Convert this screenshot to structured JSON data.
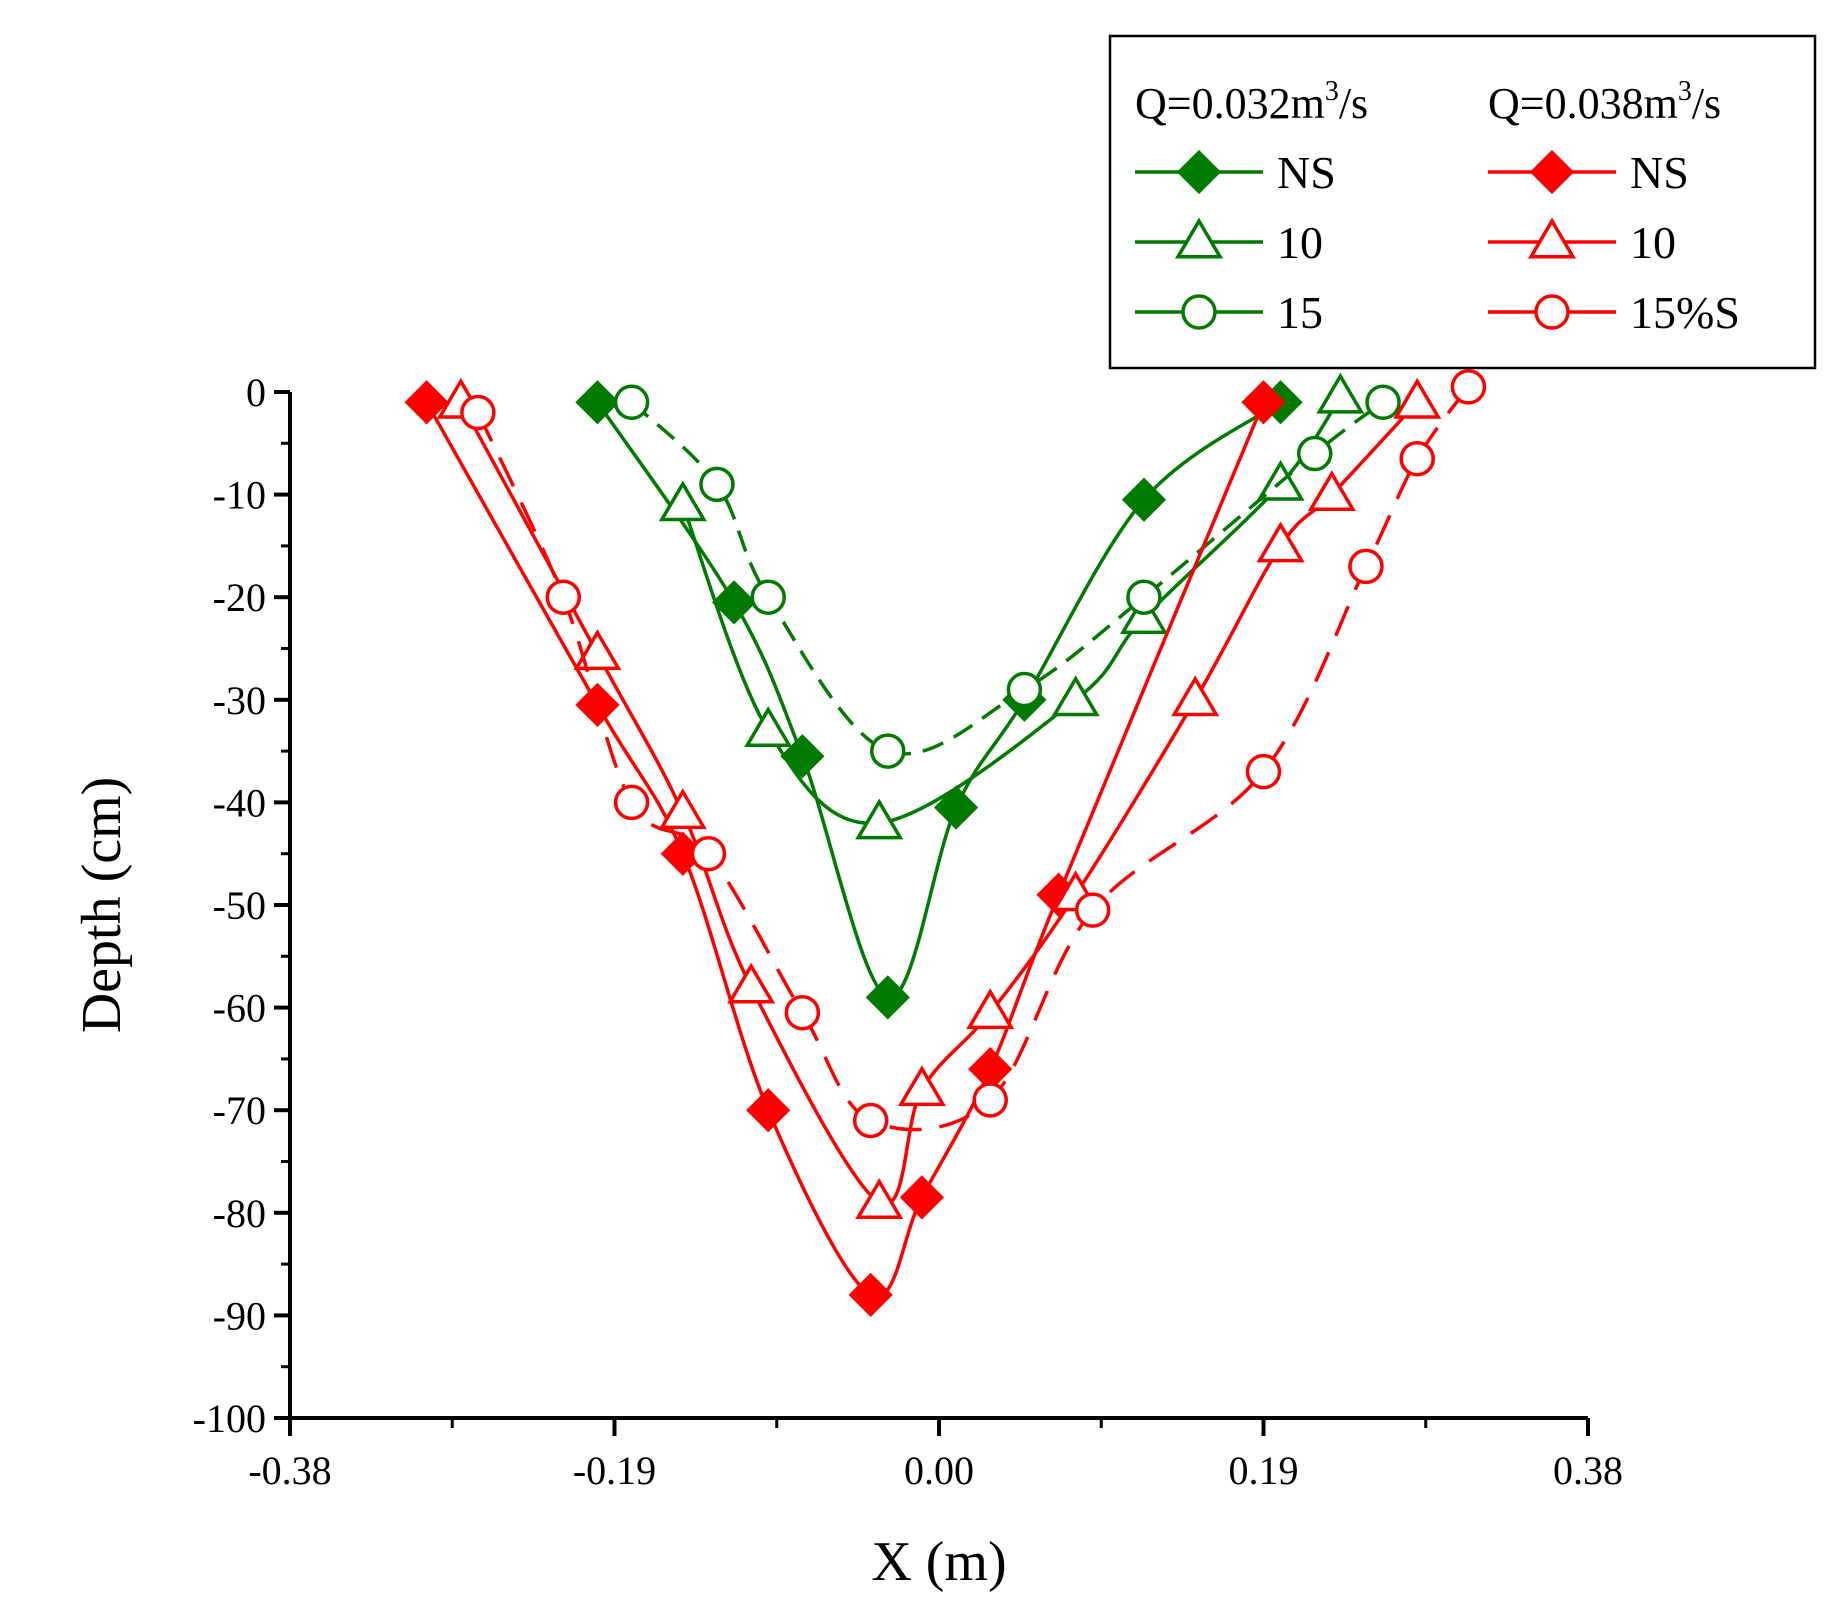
{
  "chart_data": {
    "type": "line",
    "title": "",
    "xlabel": "X (m)",
    "ylabel": "Depth (cm)",
    "xlim": [
      -0.38,
      0.38
    ],
    "ylim": [
      -100,
      0
    ],
    "x_ticks": [
      -0.38,
      -0.19,
      0.0,
      0.19,
      0.38
    ],
    "x_tick_labels": [
      "-0.38",
      "-0.19",
      "0.00",
      "0.19",
      "0.38"
    ],
    "y_ticks": [
      0,
      -10,
      -20,
      -30,
      -40,
      -50,
      -60,
      -70,
      -80,
      -90,
      -100
    ],
    "y_tick_labels": [
      "0",
      "-10",
      "-20",
      "-30",
      "-40",
      "-50",
      "-60",
      "-70",
      "-80",
      "-90",
      "-100"
    ],
    "grid": false,
    "legend_position": "top-right",
    "legend_groups": [
      {
        "header": "Q=0.032m",
        "superscript": "3",
        "suffix": "/s",
        "color": "#007A00"
      },
      {
        "header": "Q=0.038m",
        "superscript": "3",
        "suffix": "/s",
        "color": "#FF0000"
      }
    ],
    "series": [
      {
        "name": "NS",
        "group": 0,
        "color": "#007A00",
        "marker": "diamond",
        "filled": true,
        "dash": "",
        "points": [
          [
            -0.2,
            -1
          ],
          [
            -0.12,
            -20.5
          ],
          [
            -0.08,
            -35.5
          ],
          [
            -0.03,
            -59
          ],
          [
            0.01,
            -40.5
          ],
          [
            0.05,
            -30
          ],
          [
            0.12,
            -10.5
          ],
          [
            0.2,
            -1
          ]
        ]
      },
      {
        "name": "10",
        "group": 0,
        "color": "#007A00",
        "marker": "triangle",
        "filled": false,
        "dash": "",
        "points": [
          [
            -0.15,
            -11
          ],
          [
            -0.1,
            -33
          ],
          [
            -0.035,
            -42
          ],
          [
            0.08,
            -30
          ],
          [
            0.12,
            -22
          ],
          [
            0.2,
            -9
          ],
          [
            0.235,
            -0.5
          ]
        ]
      },
      {
        "name": "15",
        "group": 0,
        "color": "#007A00",
        "marker": "circle",
        "filled": false,
        "dash": "22,12",
        "points": [
          [
            -0.18,
            -1
          ],
          [
            -0.13,
            -9
          ],
          [
            -0.1,
            -20
          ],
          [
            -0.03,
            -35
          ],
          [
            0.05,
            -29
          ],
          [
            0.12,
            -20
          ],
          [
            0.22,
            -6
          ],
          [
            0.26,
            -1
          ]
        ]
      },
      {
        "name": "NS",
        "group": 1,
        "color": "#FF0000",
        "marker": "diamond",
        "filled": true,
        "dash": "",
        "points": [
          [
            -0.3,
            -1
          ],
          [
            -0.2,
            -30.5
          ],
          [
            -0.15,
            -45
          ],
          [
            -0.1,
            -70
          ],
          [
            -0.04,
            -88
          ],
          [
            -0.01,
            -78.5
          ],
          [
            0.03,
            -66
          ],
          [
            0.07,
            -49
          ],
          [
            0.19,
            -1
          ]
        ]
      },
      {
        "name": "10",
        "group": 1,
        "color": "#FF0000",
        "marker": "triangle",
        "filled": false,
        "dash": "",
        "points": [
          [
            -0.28,
            -1
          ],
          [
            -0.2,
            -25.5
          ],
          [
            -0.15,
            -41
          ],
          [
            -0.11,
            -58
          ],
          [
            -0.035,
            -79
          ],
          [
            -0.01,
            -68
          ],
          [
            0.03,
            -60.5
          ],
          [
            0.08,
            -49
          ],
          [
            0.15,
            -30
          ],
          [
            0.2,
            -15
          ],
          [
            0.23,
            -10
          ],
          [
            0.28,
            -1
          ]
        ]
      },
      {
        "name": "15%S",
        "group": 1,
        "color": "#FF0000",
        "marker": "circle",
        "filled": false,
        "dash": "32,18",
        "points": [
          [
            -0.27,
            -2
          ],
          [
            -0.22,
            -20
          ],
          [
            -0.18,
            -40
          ],
          [
            -0.135,
            -45
          ],
          [
            -0.08,
            -60.5
          ],
          [
            -0.04,
            -71
          ],
          [
            0.03,
            -69
          ],
          [
            0.09,
            -50.5
          ],
          [
            0.19,
            -37
          ],
          [
            0.25,
            -17
          ],
          [
            0.28,
            -6.5
          ],
          [
            0.31,
            0.5
          ]
        ]
      }
    ]
  }
}
